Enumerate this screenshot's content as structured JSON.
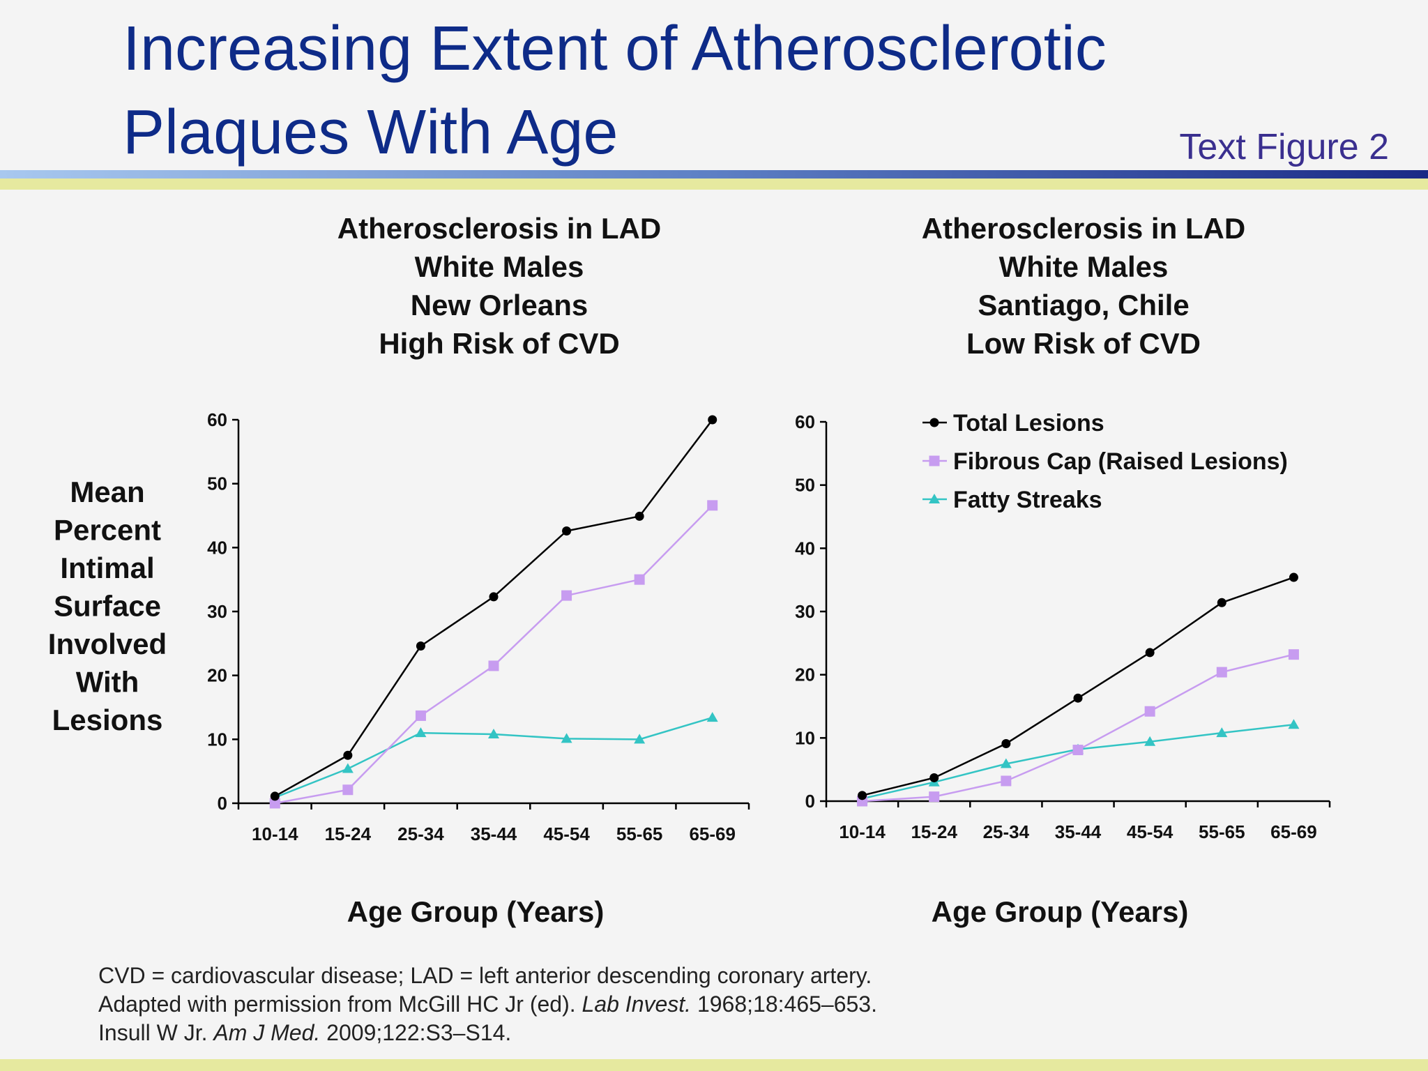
{
  "title": [
    "Increasing Extent of Atherosclerotic",
    "Plaques With Age"
  ],
  "figure_label": "Text Figure 2",
  "footnotes": [
    [
      "CVD = cardiovascular disease; LAD = left anterior descending coronary artery."
    ],
    [
      "Adapted with permission from McGill HC Jr (ed). ",
      "Lab Invest.",
      " 1968;18:465–653."
    ],
    [
      "Insull W Jr. ",
      "Am J Med.",
      " 2009;122:S3–S14."
    ]
  ],
  "chart_data": [
    {
      "type": "line",
      "title": [
        "Atherosclerosis in LAD",
        "White Males",
        "New Orleans",
        "High Risk of CVD"
      ],
      "y_label": [
        "Mean",
        "Percent",
        "Intimal",
        "Surface",
        "Involved",
        "With",
        "Lesions"
      ],
      "x_label": "Age Group (Years)",
      "categories": [
        "10-14",
        "15-24",
        "25-34",
        "35-44",
        "45-54",
        "55-65",
        "65-69"
      ],
      "ylim": [
        0,
        60
      ],
      "yticks": [
        0,
        10,
        20,
        30,
        40,
        50,
        60
      ],
      "series": [
        {
          "name": "Total Lesions",
          "color": "#000000",
          "marker": "circle",
          "values": [
            1.1,
            7.5,
            24.6,
            32.3,
            42.6,
            44.9,
            60
          ]
        },
        {
          "name": "Fibrous Cap (Raised Lesions)",
          "color": "#c79cf0",
          "marker": "square",
          "values": [
            0,
            2.1,
            13.7,
            21.5,
            32.5,
            35,
            46.6
          ]
        },
        {
          "name": "Fatty Streaks",
          "color": "#33c4c4",
          "marker": "triangle",
          "values": [
            0.9,
            5.4,
            11,
            10.8,
            10.1,
            10,
            13.4
          ]
        }
      ]
    },
    {
      "type": "line",
      "title": [
        "Atherosclerosis in LAD",
        "White Males",
        "Santiago, Chile",
        "Low Risk of CVD"
      ],
      "x_label": "Age Group (Years)",
      "categories": [
        "10-14",
        "15-24",
        "25-34",
        "35-44",
        "45-54",
        "55-65",
        "65-69"
      ],
      "ylim": [
        0,
        60
      ],
      "yticks": [
        0,
        10,
        20,
        30,
        40,
        50,
        60
      ],
      "legend": "top-left",
      "series": [
        {
          "name": "Total Lesions",
          "color": "#000000",
          "marker": "circle",
          "values": [
            0.9,
            3.7,
            9.1,
            16.3,
            23.5,
            31.4,
            35.4
          ]
        },
        {
          "name": "Fibrous Cap (Raised Lesions)",
          "color": "#c79cf0",
          "marker": "square",
          "values": [
            0,
            0.7,
            3.2,
            8.1,
            14.2,
            20.4,
            23.2
          ]
        },
        {
          "name": "Fatty Streaks",
          "color": "#33c4c4",
          "marker": "triangle",
          "values": [
            0.4,
            3,
            5.9,
            8.2,
            9.4,
            10.8,
            12.1
          ]
        }
      ]
    }
  ]
}
